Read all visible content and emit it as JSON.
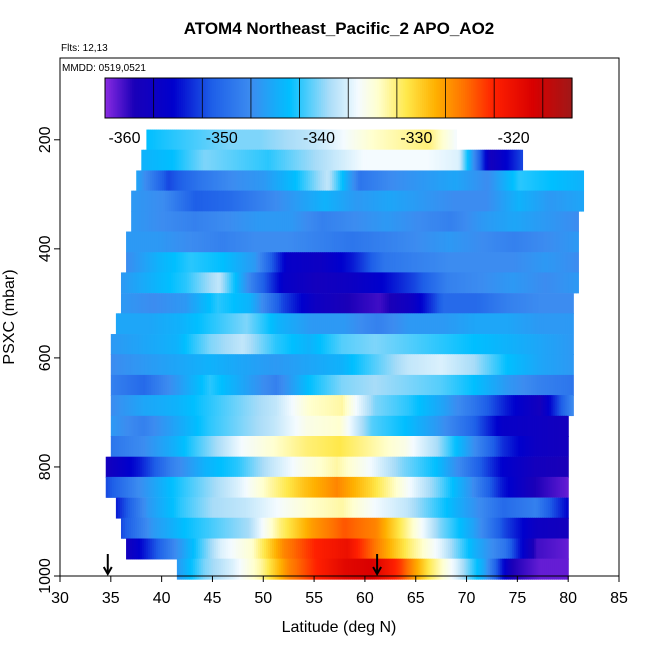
{
  "chart_data": {
    "type": "heatmap",
    "title": "ATOM4 Northeast_Pacific_2 APO_AO2",
    "flights_label": "Flts: 12,13",
    "date_label": "MMDD: 0519,0521",
    "xlabel": "Latitude (deg N)",
    "ylabel": "PSXC (mbar)",
    "xlim": [
      30,
      85
    ],
    "ylim": [
      1000,
      50
    ],
    "y_reversed": true,
    "x_ticks": [
      "30",
      "35",
      "40",
      "45",
      "50",
      "55",
      "60",
      "65",
      "70",
      "75",
      "80",
      "85"
    ],
    "y_ticks": [
      "200",
      "400",
      "600",
      "800",
      "1000"
    ],
    "colorbar": {
      "range": [
        -362,
        -314
      ],
      "ticks": [
        "-360",
        "-350",
        "-340",
        "-330",
        "-320"
      ],
      "stops": [
        {
          "v": -362,
          "c": "#8a2be2"
        },
        {
          "v": -359,
          "c": "#1a00b8"
        },
        {
          "v": -355,
          "c": "#0000cd"
        },
        {
          "v": -351,
          "c": "#1e5fe8"
        },
        {
          "v": -347,
          "c": "#3c8cf0"
        },
        {
          "v": -343,
          "c": "#00bfff"
        },
        {
          "v": -339,
          "c": "#a8dcf8"
        },
        {
          "v": -336,
          "c": "#f4fbff"
        },
        {
          "v": -334,
          "c": "#ffffd0"
        },
        {
          "v": -331,
          "c": "#ffe84a"
        },
        {
          "v": -328,
          "c": "#ffb000"
        },
        {
          "v": -325,
          "c": "#ff7000"
        },
        {
          "v": -322,
          "c": "#ff2000"
        },
        {
          "v": -318,
          "c": "#d80000"
        },
        {
          "v": -314,
          "c": "#a01818"
        }
      ],
      "separators": [
        -357,
        -352,
        -347,
        -342,
        -337,
        -332,
        -327,
        -322,
        -317
      ]
    },
    "bands": [
      {
        "p": 200,
        "x0": 38.5,
        "x1": 69.0,
        "values": [
          -343,
          -342,
          -341,
          -340,
          -340,
          -339,
          -338,
          -336,
          -334,
          -333,
          -332,
          -336
        ]
      },
      {
        "p": 237,
        "x0": 38.0,
        "x1": 75.5,
        "values": [
          -344,
          -343,
          -340,
          -341,
          -342,
          -340,
          -338,
          -336,
          -336,
          -336,
          -337,
          -358,
          -352
        ]
      },
      {
        "p": 275,
        "x0": 37.5,
        "x1": 81.5,
        "values": [
          -345,
          -352,
          -349,
          -347,
          -346,
          -343,
          -338,
          -349,
          -347,
          -346,
          -345,
          -347,
          -342,
          -343,
          -344
        ]
      },
      {
        "p": 312,
        "x0": 37.0,
        "x1": 81.5,
        "values": [
          -346,
          -347,
          -351,
          -350,
          -348,
          -346,
          -344,
          -346,
          -345,
          -346,
          -347,
          -347,
          -344,
          -346,
          -345
        ]
      },
      {
        "p": 350,
        "x0": 37.0,
        "x1": 81.0,
        "values": [
          -346,
          -347,
          -348,
          -347,
          -346,
          -346,
          -348,
          -347,
          -346,
          -347,
          -348,
          -346,
          -345,
          -346,
          -347
        ]
      },
      {
        "p": 387,
        "x0": 36.5,
        "x1": 81.0,
        "values": [
          -346,
          -346,
          -347,
          -348,
          -347,
          -347,
          -348,
          -349,
          -348,
          -347,
          -346,
          -347,
          -348,
          -347,
          -346
        ]
      },
      {
        "p": 425,
        "x0": 36.5,
        "x1": 81.0,
        "values": [
          -347,
          -344,
          -342,
          -343,
          -346,
          -356,
          -357,
          -354,
          -349,
          -348,
          -347,
          -347,
          -347,
          -346,
          -347
        ]
      },
      {
        "p": 462,
        "x0": 36.0,
        "x1": 81.0,
        "values": [
          -346,
          -344,
          -342,
          -338,
          -348,
          -356,
          -358,
          -357,
          -355,
          -352,
          -348,
          -347,
          -346,
          -347,
          -346
        ]
      },
      {
        "p": 500,
        "x0": 36.0,
        "x1": 80.5,
        "values": [
          -346,
          -347,
          -346,
          -342,
          -344,
          -352,
          -357,
          -359,
          -360,
          -357,
          -350,
          -350,
          -348,
          -347,
          -347
        ]
      },
      {
        "p": 537,
        "x0": 35.5,
        "x1": 80.5,
        "values": [
          -345,
          -345,
          -344,
          -342,
          -340,
          -344,
          -346,
          -346,
          -348,
          -346,
          -346,
          -345,
          -345,
          -346,
          -346
        ]
      },
      {
        "p": 575,
        "x0": 35.0,
        "x1": 80.5,
        "values": [
          -346,
          -345,
          -344,
          -340,
          -338,
          -342,
          -344,
          -341,
          -340,
          -341,
          -342,
          -343,
          -344,
          -345,
          -346
        ]
      },
      {
        "p": 612,
        "x0": 35.0,
        "x1": 80.5,
        "values": [
          -347,
          -346,
          -345,
          -344,
          -345,
          -346,
          -345,
          -344,
          -341,
          -338,
          -337,
          -339,
          -343,
          -345,
          -346
        ]
      },
      {
        "p": 650,
        "x0": 35.0,
        "x1": 80.5,
        "values": [
          -348,
          -350,
          -346,
          -342,
          -345,
          -348,
          -343,
          -340,
          -339,
          -340,
          -341,
          -343,
          -346,
          -348,
          -349
        ]
      },
      {
        "p": 687,
        "x0": 35.0,
        "x1": 80.5,
        "values": [
          -347,
          -345,
          -344,
          -342,
          -340,
          -338,
          -334,
          -333,
          -340,
          -342,
          -345,
          -349,
          -354,
          -358,
          -347
        ]
      },
      {
        "p": 725,
        "x0": 35.0,
        "x1": 80.0,
        "values": [
          -346,
          -348,
          -345,
          -342,
          -340,
          -338,
          -335,
          -334,
          -341,
          -343,
          -346,
          -350,
          -356,
          -357,
          -358
        ]
      },
      {
        "p": 762,
        "x0": 35.0,
        "x1": 80.0,
        "values": [
          -349,
          -347,
          -344,
          -340,
          -336,
          -334,
          -332,
          -331,
          -333,
          -335,
          -339,
          -346,
          -353,
          -357,
          -358
        ]
      },
      {
        "p": 800,
        "x0": 34.5,
        "x1": 80.0,
        "values": [
          -358,
          -354,
          -348,
          -344,
          -342,
          -338,
          -335,
          -333,
          -336,
          -340,
          -343,
          -349,
          -355,
          -358,
          -359
        ]
      },
      {
        "p": 837,
        "x0": 34.5,
        "x1": 80.0,
        "values": [
          -352,
          -347,
          -343,
          -340,
          -337,
          -333,
          -329,
          -326,
          -330,
          -335,
          -340,
          -346,
          -354,
          -359,
          -361
        ]
      },
      {
        "p": 875,
        "x0": 35.5,
        "x1": 80.0,
        "values": [
          -354,
          -346,
          -342,
          -339,
          -338,
          -336,
          -334,
          -333,
          -336,
          -338,
          -342,
          -346,
          -350,
          -348,
          -355
        ]
      },
      {
        "p": 912,
        "x0": 36.0,
        "x1": 80.0,
        "values": [
          -352,
          -346,
          -343,
          -341,
          -339,
          -332,
          -327,
          -324,
          -326,
          -333,
          -340,
          -345,
          -352,
          -357,
          -358
        ]
      },
      {
        "p": 950,
        "x0": 36.5,
        "x1": 80.0,
        "values": [
          -358,
          -351,
          -344,
          -337,
          -334,
          -326,
          -322,
          -320,
          -326,
          -332,
          -337,
          -344,
          -349,
          -360,
          -361
        ]
      },
      {
        "p": 987,
        "x0": 41.5,
        "x1": 80.0,
        "values": [
          -346,
          -340,
          -337,
          -333,
          -326,
          -322,
          -319,
          -318,
          -323,
          -331,
          -337,
          -345,
          -359,
          -361,
          -361
        ]
      }
    ],
    "markers": [
      {
        "lat": 34.7,
        "p": 1000
      },
      {
        "lat": 61.2,
        "p": 1000
      }
    ]
  }
}
